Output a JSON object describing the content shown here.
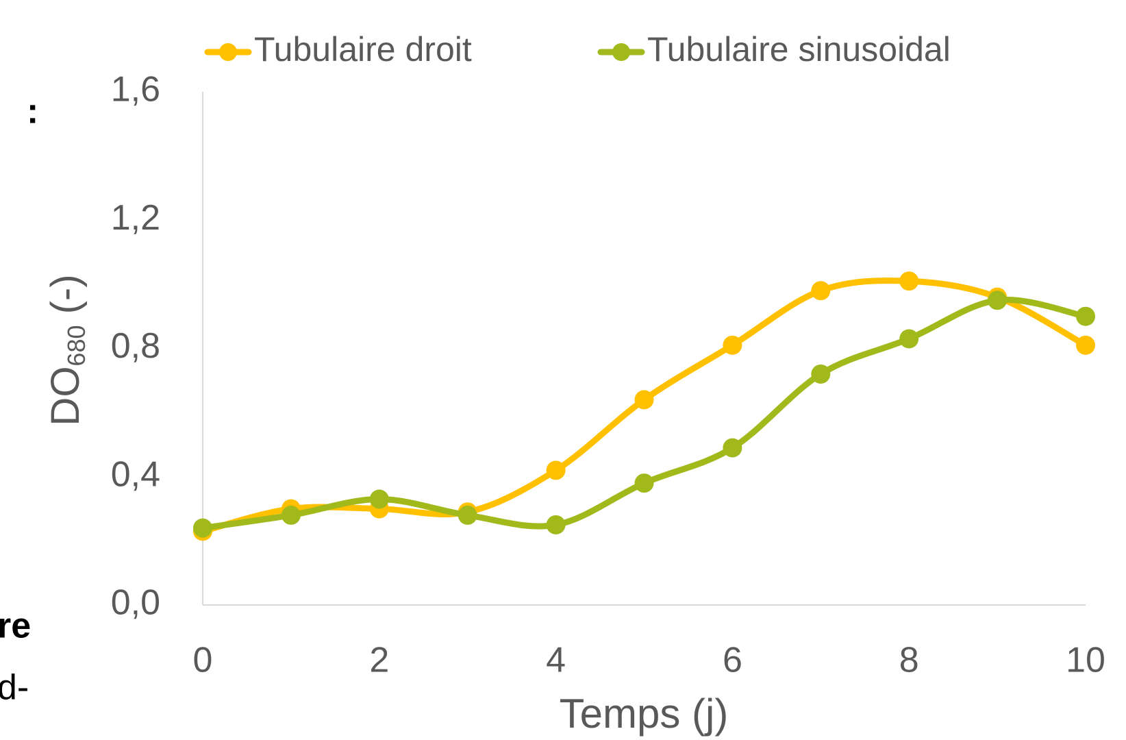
{
  "chart_data": {
    "type": "line",
    "x": [
      0,
      1,
      2,
      3,
      4,
      5,
      6,
      7,
      8,
      9,
      10
    ],
    "series": [
      {
        "name": "Tubulaire droit",
        "color": "#ffc000",
        "values": [
          0.23,
          0.3,
          0.3,
          0.29,
          0.42,
          0.64,
          0.81,
          0.98,
          1.01,
          0.96,
          0.81
        ]
      },
      {
        "name": "Tubulaire sinusoidal",
        "color": "#a2b91c",
        "values": [
          0.24,
          0.28,
          0.33,
          0.28,
          0.25,
          0.38,
          0.49,
          0.72,
          0.83,
          0.95,
          0.9
        ]
      }
    ],
    "xlabel": "Temps (j)",
    "ylabel": {
      "main": "DO",
      "sub": "680",
      "suffix": " (-)"
    },
    "xlim": [
      0,
      10
    ],
    "xticks": [
      0,
      2,
      4,
      6,
      8,
      10
    ],
    "ylim": [
      0,
      1.6
    ],
    "yticks": [
      {
        "value": 0,
        "label": "0,0"
      },
      {
        "value": 0.4,
        "label": "0,4"
      },
      {
        "value": 0.8,
        "label": "0,8"
      },
      {
        "value": 1.2,
        "label": "1,2"
      },
      {
        "value": 1.6,
        "label": "1,6"
      }
    ],
    "legend": "top",
    "smooth": true
  },
  "side_text": [
    ":",
    "re",
    "d-"
  ]
}
